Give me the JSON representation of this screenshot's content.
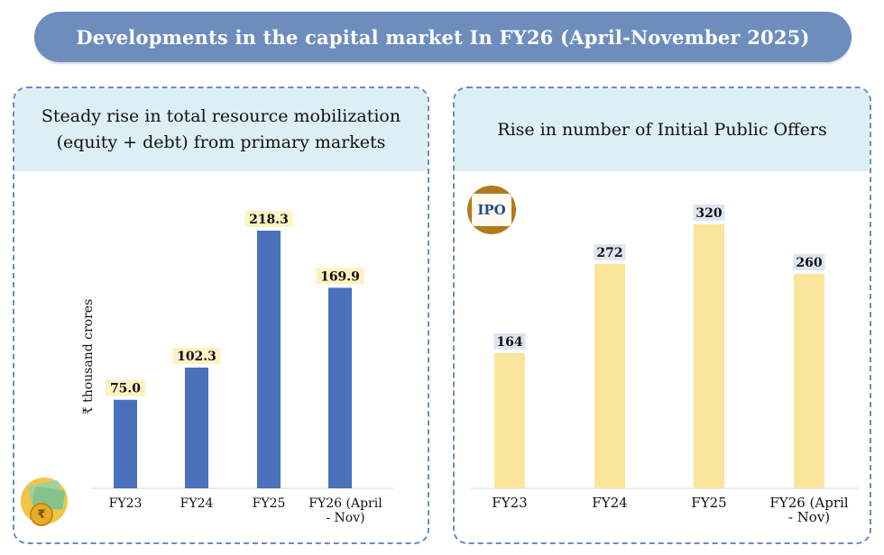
{
  "banner": {
    "title": "Developments in the capital market In FY26 (April-November 2025)"
  },
  "icons": {
    "rupee": "rupee-money-icon",
    "ipo": "ipo-chart-icon",
    "ipo_text": "IPO",
    "rupee_symbol": "₹"
  },
  "colors": {
    "banner": "#6d8dbd",
    "head_bg": "#ddeef5",
    "left_bar": "#4a72bb",
    "right_bar": "#fbe59c",
    "left_label_bg": "#fdf2c2",
    "right_label_bg": "#dde6f0"
  },
  "chart_data": [
    {
      "type": "bar",
      "title_line1": "Steady rise in total resource mobilization",
      "title_line2": "(equity + debt) from primary markets",
      "ylabel": "₹ thousand crores",
      "xlabel": "",
      "categories": [
        "FY23",
        "FY24",
        "FY25",
        "FY26 (April - Nov)"
      ],
      "category_lines": [
        [
          "FY23"
        ],
        [
          "FY24"
        ],
        [
          "FY25"
        ],
        [
          "FY26 (April",
          "- Nov)"
        ]
      ],
      "values": [
        75.0,
        102.3,
        218.3,
        169.9
      ],
      "value_labels": [
        "75.0",
        "102.3",
        "218.3",
        "169.9"
      ],
      "ylim": [
        0,
        245
      ],
      "grid": false
    },
    {
      "type": "bar",
      "title": "Rise in number of Initial Public Offers",
      "xlabel": "",
      "ylabel": "",
      "categories": [
        "FY23",
        "FY24",
        "FY25",
        "FY26 (April - Nov)"
      ],
      "category_lines": [
        [
          "FY23"
        ],
        [
          "FY24"
        ],
        [
          "FY25"
        ],
        [
          "FY26  (April",
          "- Nov)"
        ]
      ],
      "values": [
        164,
        272,
        320,
        260
      ],
      "value_labels": [
        "164",
        "272",
        "320",
        "260"
      ],
      "ylim": [
        0,
        345
      ],
      "grid": false
    }
  ]
}
